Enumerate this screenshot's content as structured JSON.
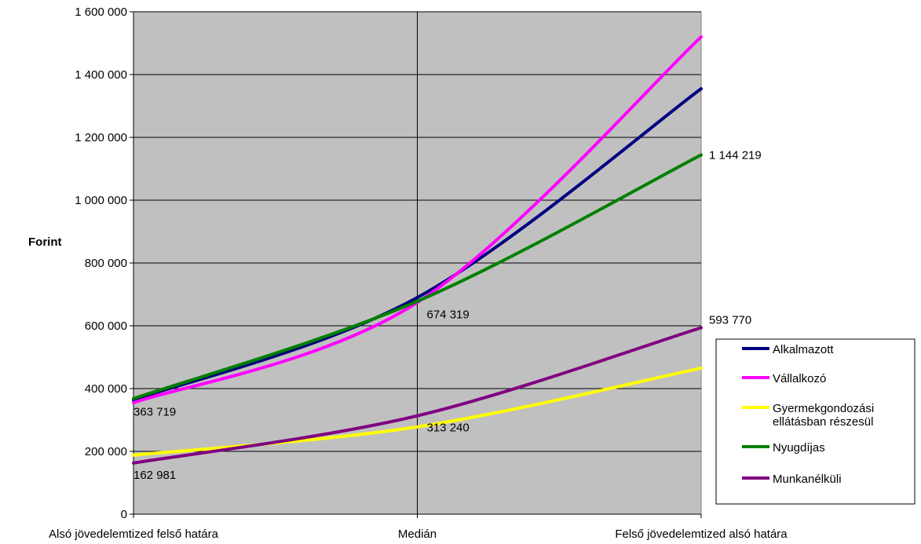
{
  "chart_data": {
    "type": "line",
    "title": "",
    "xlabel": "",
    "ylabel": "Forint",
    "categories": [
      "Alsó jövedelemtized felső határa",
      "Medián",
      "Felső jövedelemtized alsó határa"
    ],
    "ylim": [
      0,
      1600000
    ],
    "yticks": [
      0,
      200000,
      400000,
      600000,
      800000,
      1000000,
      1200000,
      1400000,
      1600000
    ],
    "ytick_labels": [
      "0",
      "200 000",
      "400 000",
      "600 000",
      "800 000",
      "1 000 000",
      "1 200 000",
      "1 400 000",
      "1 600 000"
    ],
    "grid": true,
    "smooth": true,
    "plot_background": "#c0c0c0",
    "legend_position": "right",
    "series": [
      {
        "name": "Alkalmazott",
        "values": [
          363719,
          690000,
          1355000
        ],
        "color": "#000080"
      },
      {
        "name": "Vállalkozó",
        "values": [
          355000,
          674319,
          1520000
        ],
        "color": "#ff00ff"
      },
      {
        "name": "Gyermekgondozási ellátásban részesül",
        "legend_lines": [
          "Gyermekgondozási",
          "ellátásban részesül"
        ],
        "values": [
          188000,
          278000,
          465000
        ],
        "color": "#ffff00"
      },
      {
        "name": "Nyugdíjas",
        "values": [
          368000,
          678000,
          1144219
        ],
        "color": "#008000"
      },
      {
        "name": "Munkanélküli",
        "values": [
          162981,
          313240,
          593770
        ],
        "color": "#800080"
      }
    ],
    "data_labels": [
      {
        "text": "363 719",
        "category": 0,
        "value": 363719
      },
      {
        "text": "162 981",
        "category": 0,
        "value": 162981
      },
      {
        "text": "674 319",
        "category": 1,
        "value": 674319
      },
      {
        "text": "313 240",
        "category": 1,
        "value": 313240
      },
      {
        "text": "1 144 219",
        "category": 2,
        "value": 1144219
      },
      {
        "text": "593 770",
        "category": 2,
        "value": 593770
      }
    ]
  }
}
